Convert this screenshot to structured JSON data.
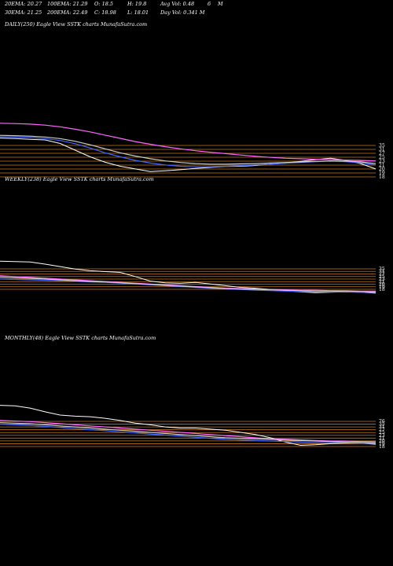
{
  "header": {
    "row1": [
      "20EMA: 20.27",
      "100EMA: 21.29",
      "O: 18.5",
      "H: 19.8",
      "Avg Vol: 0.48",
      "6",
      "M"
    ],
    "row2": [
      "30EMA: 21.25",
      "200EMA: 22.49",
      "C: 18.98",
      "L: 18.01",
      "Day Vol: 0.341 M"
    ]
  },
  "chart_data": [
    {
      "type": "line",
      "title": "DAILY(250) Eagle  View  SSTK charts MunafaSutra.com",
      "level_labels": [
        "35",
        "31",
        "27",
        "25",
        "23",
        "21",
        "20",
        "19",
        "18"
      ],
      "levels": [
        35,
        31,
        27,
        25,
        23,
        21,
        20,
        19,
        18
      ],
      "ylim": [
        14,
        38
      ],
      "series": [
        {
          "color": "#ffffff",
          "values": [
            30.5,
            30.3,
            30.0,
            29.8,
            28.5,
            26.0,
            23.5,
            21.5,
            20.0,
            19.0,
            18.0,
            18.3,
            18.7,
            19.2,
            19.6,
            19.9,
            20.0,
            20.3,
            20.8,
            21.2,
            21.8,
            22.5,
            23.0,
            22.2,
            21.0,
            19.0
          ]
        },
        {
          "color": "#ff66ff",
          "values": [
            36.0,
            35.9,
            35.7,
            35.3,
            34.7,
            33.8,
            32.8,
            31.6,
            30.4,
            29.2,
            28.2,
            27.3,
            26.5,
            25.8,
            25.2,
            24.7,
            24.2,
            23.7,
            23.3,
            23.0,
            22.8,
            22.6,
            22.5,
            22.3,
            22.2,
            22.0
          ]
        },
        {
          "color": "#4466ff",
          "values": [
            31.0,
            30.9,
            30.7,
            30.3,
            29.6,
            28.4,
            26.8,
            25.0,
            23.5,
            22.2,
            21.2,
            20.5,
            20.0,
            19.8,
            19.8,
            20.0,
            20.2,
            20.5,
            20.8,
            21.1,
            21.4,
            21.7,
            21.9,
            21.7,
            21.3,
            20.5
          ]
        },
        {
          "color": "#cccccc",
          "values": [
            31.5,
            31.4,
            31.2,
            30.9,
            30.3,
            29.3,
            28.0,
            26.5,
            25.0,
            23.8,
            22.8,
            22.0,
            21.4,
            21.0,
            20.8,
            20.8,
            20.9,
            21.0,
            21.2,
            21.4,
            21.6,
            21.8,
            22.0,
            21.9,
            21.6,
            21.0
          ]
        }
      ]
    },
    {
      "type": "line",
      "title": "WEEKLY(238) Eagle  View  SSTK charts MunafaSutra.com",
      "level_labels": [
        "35",
        "31",
        "27",
        "25",
        "23",
        "21",
        "20",
        "19",
        "18"
      ],
      "levels": [
        35,
        31,
        27,
        25,
        23,
        21,
        20,
        19,
        18
      ],
      "ylim": [
        14,
        160
      ],
      "series": [
        {
          "color": "#ffffff",
          "values": [
            95,
            94,
            93,
            88,
            82,
            76,
            72,
            70,
            68,
            58,
            47,
            43,
            42,
            44,
            40,
            36,
            32,
            30,
            27,
            24,
            21,
            19,
            20,
            21,
            20,
            18
          ]
        },
        {
          "color": "#ff66ff",
          "values": [
            60,
            58,
            56,
            54,
            52,
            50,
            48,
            46,
            44,
            42,
            40,
            38,
            36,
            34,
            32,
            30,
            29,
            28,
            27,
            26,
            25,
            25,
            24,
            24,
            23,
            23
          ]
        },
        {
          "color": "#4466ff",
          "values": [
            52,
            51,
            50,
            49,
            48,
            47,
            45,
            44,
            42,
            40,
            38,
            36,
            34,
            32,
            30,
            28,
            27,
            25,
            24,
            23,
            22,
            21,
            21,
            21,
            20,
            20
          ]
        },
        {
          "color": "#cccccc",
          "values": [
            56,
            55,
            54,
            52,
            50,
            48,
            46,
            45,
            43,
            41,
            39,
            37,
            35,
            33,
            31,
            29,
            28,
            27,
            26,
            25,
            24,
            23,
            23,
            22,
            22,
            21
          ]
        }
      ]
    },
    {
      "type": "line",
      "title": "MONTHLY(48) Eagle  View  SSTK charts MunafaSutra.com",
      "level_labels": [
        "76",
        "35",
        "31",
        "27",
        "25",
        "23",
        "21",
        "20",
        "19",
        "18"
      ],
      "levels": [
        76,
        35,
        31,
        27,
        25,
        23,
        21,
        20,
        19,
        18
      ],
      "ylim": [
        8,
        120
      ],
      "series": [
        {
          "color": "#ffffff",
          "values": [
            90,
            89,
            85,
            78,
            72,
            70,
            69,
            66,
            62,
            57,
            54,
            50,
            48,
            48,
            46,
            44,
            40,
            36,
            30,
            22,
            16,
            17,
            19,
            20,
            20,
            18
          ]
        },
        {
          "color": "#ff66ff",
          "values": [
            62,
            61,
            60,
            58,
            56,
            54,
            52,
            50,
            48,
            46,
            44,
            42,
            40,
            38,
            36,
            34,
            32,
            30,
            28,
            27,
            26,
            25,
            24,
            24,
            23,
            23
          ]
        },
        {
          "color": "#4466ff",
          "values": [
            55,
            54,
            53,
            51,
            49,
            47,
            45,
            43,
            41,
            39,
            37,
            35,
            33,
            31,
            29,
            27,
            26,
            25,
            24,
            23,
            22,
            21,
            21,
            21,
            20,
            20
          ]
        },
        {
          "color": "#cccccc",
          "values": [
            58,
            57,
            56,
            54,
            52,
            50,
            48,
            46,
            44,
            42,
            40,
            38,
            36,
            34,
            32,
            30,
            29,
            28,
            27,
            26,
            25,
            24,
            23,
            22,
            22,
            21
          ]
        }
      ]
    }
  ]
}
